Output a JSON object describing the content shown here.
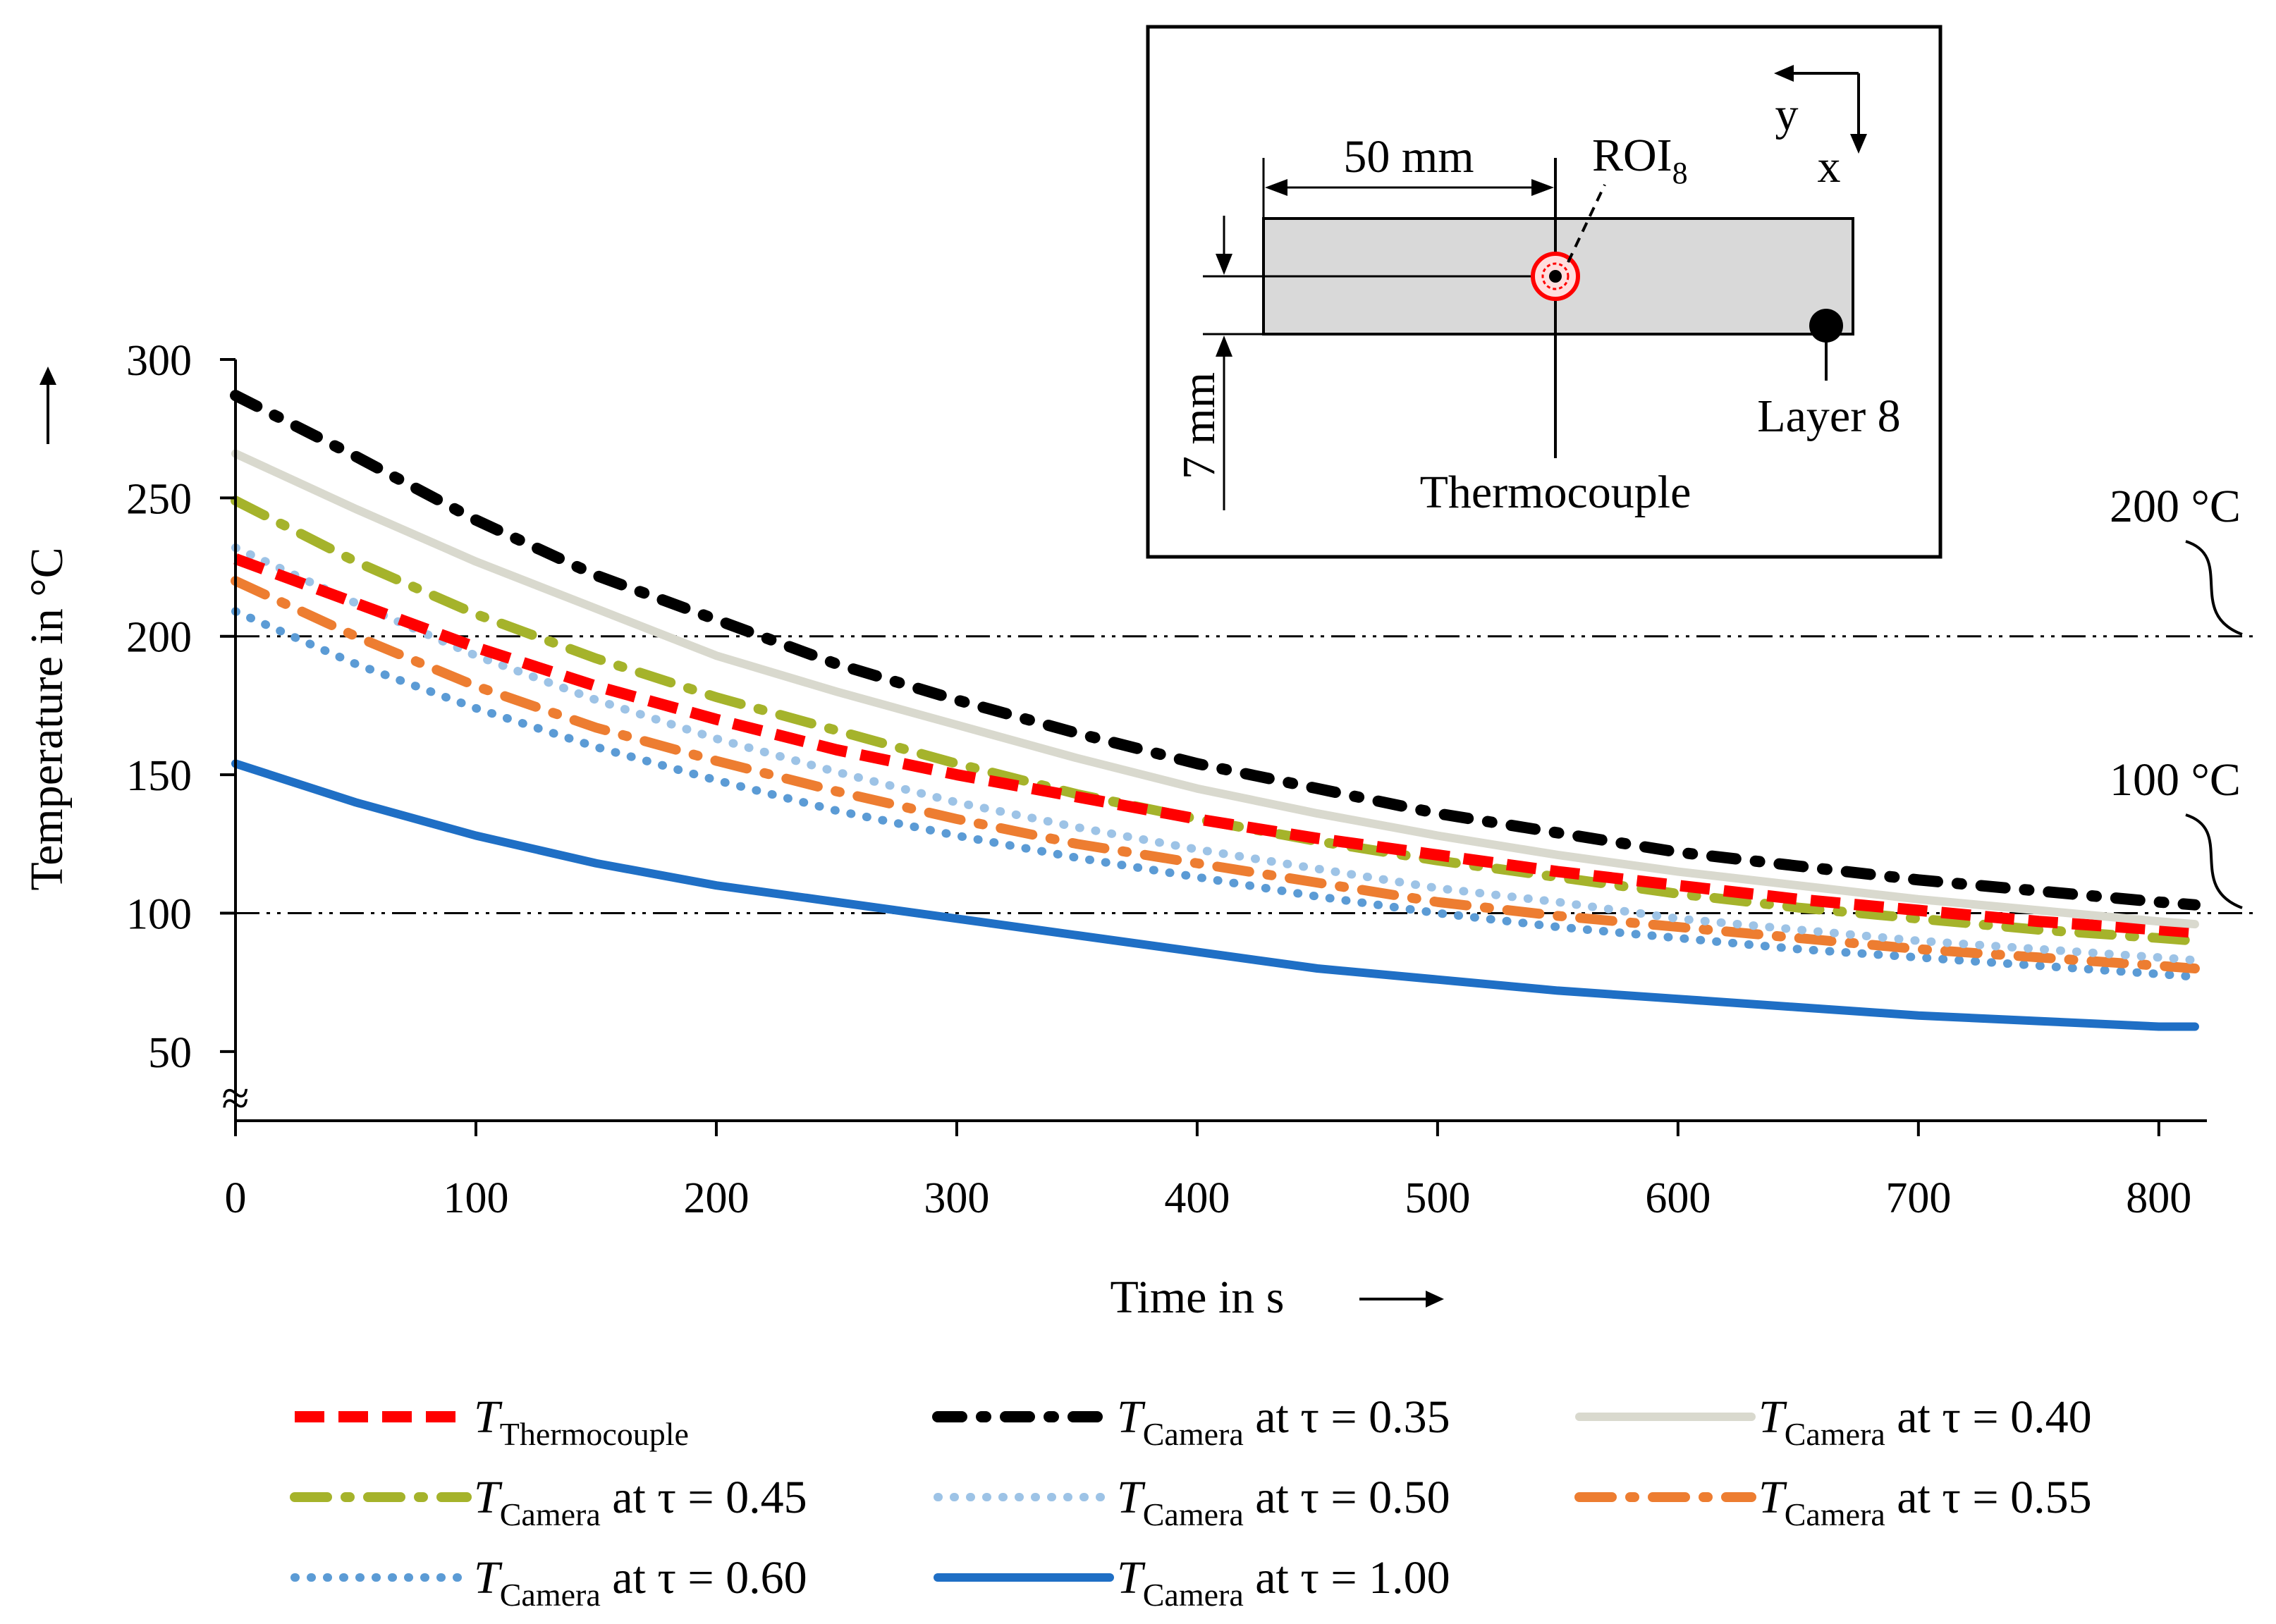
{
  "chart_data": {
    "type": "line",
    "xlabel": "Time in s",
    "ylabel": "Temperature in °C",
    "xlim": [
      0,
      820
    ],
    "ylim": [
      25,
      300
    ],
    "x_ticks": [
      "0",
      "100",
      "200",
      "300",
      "400",
      "500",
      "600",
      "700",
      "800"
    ],
    "y_ticks": [
      "300",
      "250",
      "200",
      "150",
      "100",
      "50"
    ],
    "axis_break_symbol": "≈",
    "reference_lines": [
      {
        "value": 200,
        "label": "200 °C"
      },
      {
        "value": 100,
        "label": "100 °C"
      }
    ],
    "x": [
      0,
      50,
      100,
      150,
      200,
      250,
      300,
      350,
      400,
      450,
      500,
      550,
      600,
      650,
      700,
      750,
      800,
      815
    ],
    "series": [
      {
        "name": "T_Thermocouple",
        "symbol": "T",
        "subscript": "Thermocouple",
        "suffix": "",
        "color": "#ff0000",
        "style": "dash",
        "values": [
          228,
          212,
          196,
          182,
          170,
          159,
          150,
          142,
          134,
          127,
          121,
          115,
          110,
          105,
          101,
          97,
          94,
          93
        ]
      },
      {
        "name": "T_Camera at τ = 0.35",
        "symbol": "T",
        "subscript": "Camera",
        "suffix": " at τ = 0.35",
        "color": "#000000",
        "style": "dashdot",
        "values": [
          287,
          265,
          242,
          222,
          206,
          190,
          177,
          165,
          154,
          145,
          136,
          129,
          122,
          117,
          112,
          108,
          104,
          103
        ]
      },
      {
        "name": "T_Camera at τ = 0.40",
        "symbol": "T",
        "subscript": "Camera",
        "suffix": " at τ = 0.40",
        "color": "#d9d9ce",
        "style": "solid",
        "values": [
          266,
          246,
          227,
          210,
          193,
          180,
          168,
          156,
          145,
          136,
          128,
          121,
          115,
          110,
          105,
          101,
          97,
          96
        ]
      },
      {
        "name": "T_Camera at τ = 0.45",
        "symbol": "T",
        "subscript": "Camera",
        "suffix": " at τ = 0.45",
        "color": "#a5b32b",
        "style": "longdashdot",
        "values": [
          249,
          227,
          208,
          192,
          178,
          166,
          154,
          143,
          134,
          126,
          119,
          113,
          107,
          102,
          98,
          94,
          91,
          90
        ]
      },
      {
        "name": "T_Camera at τ = 0.50",
        "symbol": "T",
        "subscript": "Camera",
        "suffix": " at τ = 0.50",
        "color": "#9dc3e6",
        "style": "dotted",
        "values": [
          232,
          212,
          193,
          177,
          163,
          151,
          140,
          131,
          123,
          116,
          109,
          104,
          98,
          94,
          90,
          87,
          84,
          83
        ]
      },
      {
        "name": "T_Camera at τ = 0.55",
        "symbol": "T",
        "subscript": "Camera",
        "suffix": " at τ = 0.55",
        "color": "#ed7d31",
        "style": "longdashdot",
        "values": [
          220,
          200,
          182,
          167,
          155,
          144,
          134,
          125,
          118,
          111,
          104,
          99,
          95,
          91,
          87,
          84,
          81,
          80
        ]
      },
      {
        "name": "T_Camera at τ = 0.60",
        "symbol": "T",
        "subscript": "Camera",
        "suffix": " at τ = 0.60",
        "color": "#5b9bd5",
        "style": "dotted",
        "values": [
          209,
          190,
          174,
          160,
          148,
          137,
          128,
          120,
          113,
          106,
          100,
          95,
          91,
          87,
          84,
          81,
          78,
          77
        ]
      },
      {
        "name": "T_Camera at τ = 1.00",
        "symbol": "T",
        "subscript": "Camera",
        "suffix": " at τ = 1.00",
        "color": "#1f6fc5",
        "style": "solid",
        "values": [
          154,
          140,
          128,
          118,
          110,
          104,
          98,
          92,
          86,
          80,
          76,
          72,
          69,
          66,
          63,
          61,
          59,
          59
        ]
      }
    ]
  },
  "inset": {
    "dim_50": "50 mm",
    "dim_7": "7 mm",
    "roi_base": "ROI",
    "roi_sub": "8",
    "axis_y": "y",
    "axis_x": "x",
    "layer_label": "Layer 8",
    "thermocouple_label": "Thermocouple"
  }
}
